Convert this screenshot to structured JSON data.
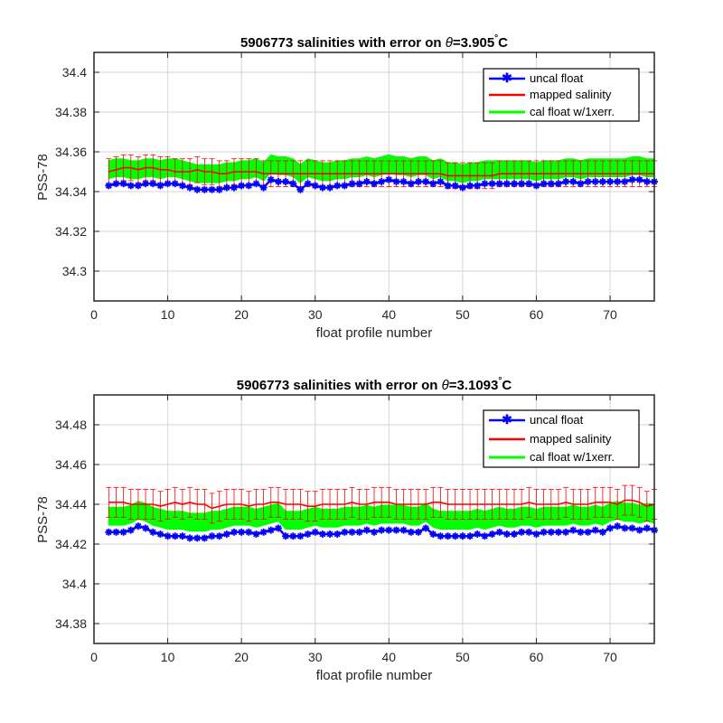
{
  "chart_data": [
    {
      "type": "line",
      "title": "5906773 salinities with error on θ=3.905°C",
      "title_parts": {
        "prefix": "5906773 salinities with error on ",
        "theta": "θ",
        "value": "=3.905",
        "degree": "°",
        "unit": "C"
      },
      "xlabel": "float profile number",
      "ylabel": "PSS-78",
      "xlim": [
        0,
        76
      ],
      "ylim": [
        34.285,
        34.41
      ],
      "xticks": [
        0,
        10,
        20,
        30,
        40,
        50,
        60,
        70
      ],
      "xtick_labels": [
        "0",
        "10",
        "20",
        "30",
        "40",
        "50",
        "60",
        "70"
      ],
      "yticks": [
        34.3,
        34.32,
        34.34,
        34.36,
        34.38,
        34.4
      ],
      "ytick_labels": [
        "34.3",
        "34.32",
        "34.34",
        "34.36",
        "34.38",
        "34.4"
      ],
      "grid": true,
      "legend_position": "top-right",
      "series": [
        {
          "name": "uncal float",
          "color": "#0000ff",
          "marker": "asterisk",
          "x": [
            2,
            3,
            4,
            5,
            6,
            7,
            8,
            9,
            10,
            11,
            12,
            13,
            14,
            15,
            16,
            17,
            18,
            19,
            20,
            21,
            22,
            23,
            24,
            25,
            26,
            27,
            28,
            29,
            30,
            31,
            32,
            33,
            34,
            35,
            36,
            37,
            38,
            39,
            40,
            41,
            42,
            43,
            44,
            45,
            46,
            47,
            48,
            49,
            50,
            51,
            52,
            53,
            54,
            55,
            56,
            57,
            58,
            59,
            60,
            61,
            62,
            63,
            64,
            65,
            66,
            67,
            68,
            69,
            70,
            71,
            72,
            73,
            74,
            75,
            76
          ],
          "y": [
            34.343,
            34.344,
            34.344,
            34.343,
            34.343,
            34.344,
            34.344,
            34.343,
            34.344,
            34.344,
            34.343,
            34.342,
            34.341,
            34.341,
            34.341,
            34.341,
            34.342,
            34.342,
            34.343,
            34.343,
            34.344,
            34.342,
            34.346,
            34.345,
            34.345,
            34.344,
            34.341,
            34.344,
            34.343,
            34.342,
            34.342,
            34.343,
            34.343,
            34.344,
            34.344,
            34.345,
            34.344,
            34.345,
            34.346,
            34.345,
            34.345,
            34.344,
            34.345,
            34.345,
            34.344,
            34.345,
            34.343,
            34.343,
            34.342,
            34.343,
            34.343,
            34.344,
            34.344,
            34.344,
            34.344,
            34.344,
            34.344,
            34.344,
            34.343,
            34.344,
            34.344,
            34.344,
            34.345,
            34.345,
            34.344,
            34.345,
            34.345,
            34.345,
            34.345,
            34.345,
            34.345,
            34.346,
            34.346,
            34.345,
            34.345
          ]
        },
        {
          "name": "mapped salinity",
          "color": "#ff0000",
          "errorbar": 0.0065,
          "x": [
            2,
            3,
            4,
            5,
            6,
            7,
            8,
            9,
            10,
            11,
            12,
            13,
            14,
            15,
            16,
            17,
            18,
            19,
            20,
            21,
            22,
            23,
            24,
            25,
            26,
            27,
            28,
            29,
            30,
            31,
            32,
            33,
            34,
            35,
            36,
            37,
            38,
            39,
            40,
            41,
            42,
            43,
            44,
            45,
            46,
            47,
            48,
            49,
            50,
            51,
            52,
            53,
            54,
            55,
            56,
            57,
            58,
            59,
            60,
            61,
            62,
            63,
            64,
            65,
            66,
            67,
            68,
            69,
            70,
            71,
            72,
            73,
            74,
            75,
            76
          ],
          "y": [
            34.35,
            34.351,
            34.352,
            34.352,
            34.351,
            34.352,
            34.352,
            34.351,
            34.351,
            34.35,
            34.35,
            34.35,
            34.351,
            34.35,
            34.35,
            34.349,
            34.349,
            34.35,
            34.35,
            34.35,
            34.35,
            34.349,
            34.349,
            34.349,
            34.349,
            34.349,
            34.349,
            34.349,
            34.349,
            34.349,
            34.349,
            34.349,
            34.349,
            34.349,
            34.349,
            34.349,
            34.349,
            34.349,
            34.349,
            34.349,
            34.349,
            34.349,
            34.349,
            34.349,
            34.349,
            34.349,
            34.348,
            34.348,
            34.348,
            34.348,
            34.348,
            34.348,
            34.348,
            34.349,
            34.349,
            34.349,
            34.349,
            34.349,
            34.349,
            34.349,
            34.349,
            34.349,
            34.349,
            34.349,
            34.349,
            34.349,
            34.349,
            34.349,
            34.349,
            34.349,
            34.349,
            34.349,
            34.349,
            34.349,
            34.349
          ]
        },
        {
          "name": "cal float w/1xerr.",
          "color": "#00ff00",
          "band": true,
          "x": [
            2,
            3,
            4,
            5,
            6,
            7,
            8,
            9,
            10,
            11,
            12,
            13,
            14,
            15,
            16,
            17,
            18,
            19,
            20,
            21,
            22,
            23,
            24,
            25,
            26,
            27,
            28,
            29,
            30,
            31,
            32,
            33,
            34,
            35,
            36,
            37,
            38,
            39,
            40,
            41,
            42,
            43,
            44,
            45,
            46,
            47,
            48,
            49,
            50,
            51,
            52,
            53,
            54,
            55,
            56,
            57,
            58,
            59,
            60,
            61,
            62,
            63,
            64,
            65,
            66,
            67,
            68,
            69,
            70,
            71,
            72,
            73,
            74,
            75,
            76
          ],
          "y": [
            34.351,
            34.352,
            34.352,
            34.351,
            34.351,
            34.352,
            34.352,
            34.351,
            34.352,
            34.352,
            34.351,
            34.35,
            34.349,
            34.349,
            34.349,
            34.349,
            34.35,
            34.35,
            34.351,
            34.351,
            34.352,
            34.35,
            34.354,
            34.353,
            34.353,
            34.352,
            34.349,
            34.352,
            34.351,
            34.35,
            34.35,
            34.351,
            34.351,
            34.352,
            34.352,
            34.353,
            34.352,
            34.353,
            34.354,
            34.353,
            34.353,
            34.352,
            34.353,
            34.353,
            34.351,
            34.352,
            34.35,
            34.35,
            34.349,
            34.35,
            34.35,
            34.351,
            34.351,
            34.351,
            34.351,
            34.351,
            34.351,
            34.351,
            34.35,
            34.351,
            34.351,
            34.351,
            34.352,
            34.352,
            34.351,
            34.352,
            34.352,
            34.352,
            34.352,
            34.352,
            34.352,
            34.353,
            34.353,
            34.352,
            34.352
          ],
          "err": 0.0045
        }
      ]
    },
    {
      "type": "line",
      "title": "5906773 salinities with error on θ=3.1093°C",
      "title_parts": {
        "prefix": "5906773 salinities with error on ",
        "theta": "θ",
        "value": "=3.1093",
        "degree": "°",
        "unit": "C"
      },
      "xlabel": "float profile number",
      "ylabel": "PSS-78",
      "xlim": [
        0,
        76
      ],
      "ylim": [
        34.37,
        34.495
      ],
      "xticks": [
        0,
        10,
        20,
        30,
        40,
        50,
        60,
        70
      ],
      "xtick_labels": [
        "0",
        "10",
        "20",
        "30",
        "40",
        "50",
        "60",
        "70"
      ],
      "yticks": [
        34.38,
        34.4,
        34.42,
        34.44,
        34.46,
        34.48
      ],
      "ytick_labels": [
        "34.38",
        "34.4",
        "34.42",
        "34.44",
        "34.46",
        "34.48"
      ],
      "grid": true,
      "legend_position": "top-right",
      "series": [
        {
          "name": "uncal float",
          "color": "#0000ff",
          "marker": "asterisk",
          "x": [
            2,
            3,
            4,
            5,
            6,
            7,
            8,
            9,
            10,
            11,
            12,
            13,
            14,
            15,
            16,
            17,
            18,
            19,
            20,
            21,
            22,
            23,
            24,
            25,
            26,
            27,
            28,
            29,
            30,
            31,
            32,
            33,
            34,
            35,
            36,
            37,
            38,
            39,
            40,
            41,
            42,
            43,
            44,
            45,
            46,
            47,
            48,
            49,
            50,
            51,
            52,
            53,
            54,
            55,
            56,
            57,
            58,
            59,
            60,
            61,
            62,
            63,
            64,
            65,
            66,
            67,
            68,
            69,
            70,
            71,
            72,
            73,
            74,
            75,
            76
          ],
          "y": [
            34.426,
            34.426,
            34.426,
            34.427,
            34.429,
            34.428,
            34.426,
            34.425,
            34.424,
            34.424,
            34.424,
            34.423,
            34.423,
            34.423,
            34.424,
            34.424,
            34.425,
            34.426,
            34.426,
            34.426,
            34.425,
            34.426,
            34.427,
            34.428,
            34.424,
            34.424,
            34.424,
            34.425,
            34.426,
            34.425,
            34.425,
            34.425,
            34.426,
            34.426,
            34.426,
            34.427,
            34.426,
            34.427,
            34.427,
            34.427,
            34.427,
            34.426,
            34.426,
            34.428,
            34.425,
            34.424,
            34.424,
            34.424,
            34.424,
            34.424,
            34.425,
            34.424,
            34.425,
            34.426,
            34.425,
            34.425,
            34.426,
            34.426,
            34.425,
            34.426,
            34.426,
            34.426,
            34.426,
            34.427,
            34.426,
            34.426,
            34.427,
            34.426,
            34.428,
            34.429,
            34.428,
            34.428,
            34.427,
            34.428,
            34.427
          ]
        },
        {
          "name": "mapped salinity",
          "color": "#ff0000",
          "errorbar": 0.0075,
          "x": [
            2,
            3,
            4,
            5,
            6,
            7,
            8,
            9,
            10,
            11,
            12,
            13,
            14,
            15,
            16,
            17,
            18,
            19,
            20,
            21,
            22,
            23,
            24,
            25,
            26,
            27,
            28,
            29,
            30,
            31,
            32,
            33,
            34,
            35,
            36,
            37,
            38,
            39,
            40,
            41,
            42,
            43,
            44,
            45,
            46,
            47,
            48,
            49,
            50,
            51,
            52,
            53,
            54,
            55,
            56,
            57,
            58,
            59,
            60,
            61,
            62,
            63,
            64,
            65,
            66,
            67,
            68,
            69,
            70,
            71,
            72,
            73,
            74,
            75,
            76
          ],
          "y": [
            34.441,
            34.441,
            34.441,
            34.44,
            34.44,
            34.44,
            34.44,
            34.439,
            34.44,
            34.441,
            34.44,
            34.441,
            34.44,
            34.44,
            34.438,
            34.439,
            34.44,
            34.44,
            34.44,
            34.439,
            34.44,
            34.44,
            34.441,
            34.441,
            34.44,
            34.44,
            34.44,
            34.439,
            34.439,
            34.44,
            34.44,
            34.44,
            34.44,
            34.441,
            34.44,
            34.44,
            34.441,
            34.441,
            34.441,
            34.44,
            34.44,
            34.44,
            34.44,
            34.44,
            34.441,
            34.441,
            34.44,
            34.44,
            34.44,
            34.44,
            34.44,
            34.44,
            34.44,
            34.44,
            34.44,
            34.44,
            34.44,
            34.441,
            34.44,
            34.44,
            34.44,
            34.44,
            34.441,
            34.44,
            34.44,
            34.44,
            34.441,
            34.441,
            34.441,
            34.44,
            34.442,
            34.442,
            34.441,
            34.439,
            34.44
          ]
        },
        {
          "name": "cal float w/1xerr.",
          "color": "#00ff00",
          "band": true,
          "x": [
            2,
            3,
            4,
            5,
            6,
            7,
            8,
            9,
            10,
            11,
            12,
            13,
            14,
            15,
            16,
            17,
            18,
            19,
            20,
            21,
            22,
            23,
            24,
            25,
            26,
            27,
            28,
            29,
            30,
            31,
            32,
            33,
            34,
            35,
            36,
            37,
            38,
            39,
            40,
            41,
            42,
            43,
            44,
            45,
            46,
            47,
            48,
            49,
            50,
            51,
            52,
            53,
            54,
            55,
            56,
            57,
            58,
            59,
            60,
            61,
            62,
            63,
            64,
            65,
            66,
            67,
            68,
            69,
            70,
            71,
            72,
            73,
            74,
            75,
            76
          ],
          "y": [
            34.434,
            34.434,
            34.434,
            34.435,
            34.437,
            34.436,
            34.434,
            34.433,
            34.432,
            34.432,
            34.432,
            34.431,
            34.431,
            34.431,
            34.432,
            34.432,
            34.433,
            34.434,
            34.434,
            34.434,
            34.433,
            34.434,
            34.435,
            34.436,
            34.432,
            34.432,
            34.432,
            34.433,
            34.434,
            34.433,
            34.433,
            34.433,
            34.434,
            34.434,
            34.434,
            34.435,
            34.434,
            34.435,
            34.435,
            34.435,
            34.435,
            34.434,
            34.434,
            34.436,
            34.433,
            34.432,
            34.432,
            34.432,
            34.432,
            34.432,
            34.433,
            34.432,
            34.433,
            34.434,
            34.433,
            34.433,
            34.434,
            34.434,
            34.433,
            34.434,
            34.434,
            34.434,
            34.434,
            34.435,
            34.434,
            34.434,
            34.435,
            34.434,
            34.436,
            34.437,
            34.436,
            34.436,
            34.435,
            34.436,
            34.435
          ],
          "err": 0.0045
        }
      ]
    }
  ]
}
